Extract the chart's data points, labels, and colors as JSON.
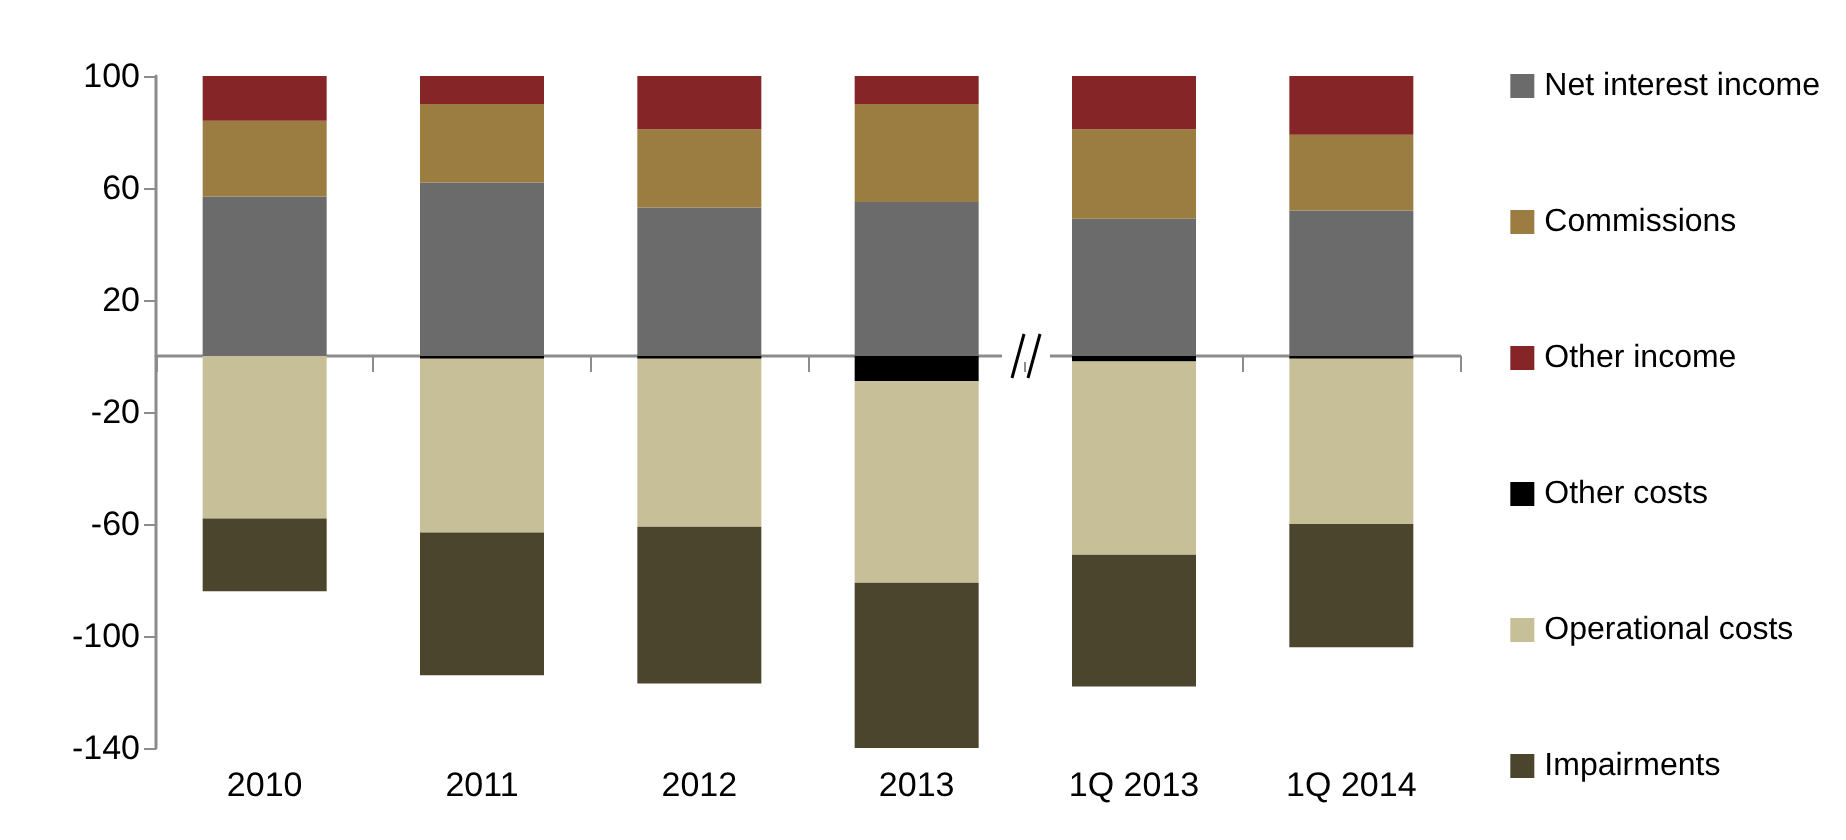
{
  "chart_data": {
    "type": "bar",
    "stacked": true,
    "categories": [
      "2010",
      "2011",
      "2012",
      "2013",
      "1Q 2013",
      "1Q 2014"
    ],
    "series": [
      {
        "name": "Net interest income",
        "color": "#6b6b6b",
        "values": [
          57,
          62,
          53,
          55,
          49,
          52
        ]
      },
      {
        "name": "Commissions",
        "color": "#9b7d41",
        "values": [
          27,
          28,
          28,
          35,
          32,
          27
        ]
      },
      {
        "name": "Other income",
        "color": "#862527",
        "values": [
          16,
          10,
          19,
          10,
          19,
          21
        ]
      },
      {
        "name": "Other costs",
        "color": "#000000",
        "values": [
          0,
          -1,
          -1,
          -9,
          -2,
          -1
        ]
      },
      {
        "name": "Operational costs",
        "color": "#c6bf98",
        "values": [
          -58,
          -62,
          -60,
          -72,
          -69,
          -59
        ]
      },
      {
        "name": "Impairments",
        "color": "#4b452d",
        "values": [
          -26,
          -51,
          -56,
          -59,
          -47,
          -44
        ]
      }
    ],
    "ylim": [
      -140,
      100
    ],
    "yticks": [
      100,
      60,
      20,
      -20,
      -60,
      -100,
      -140
    ],
    "grid": false,
    "legend": "right"
  }
}
